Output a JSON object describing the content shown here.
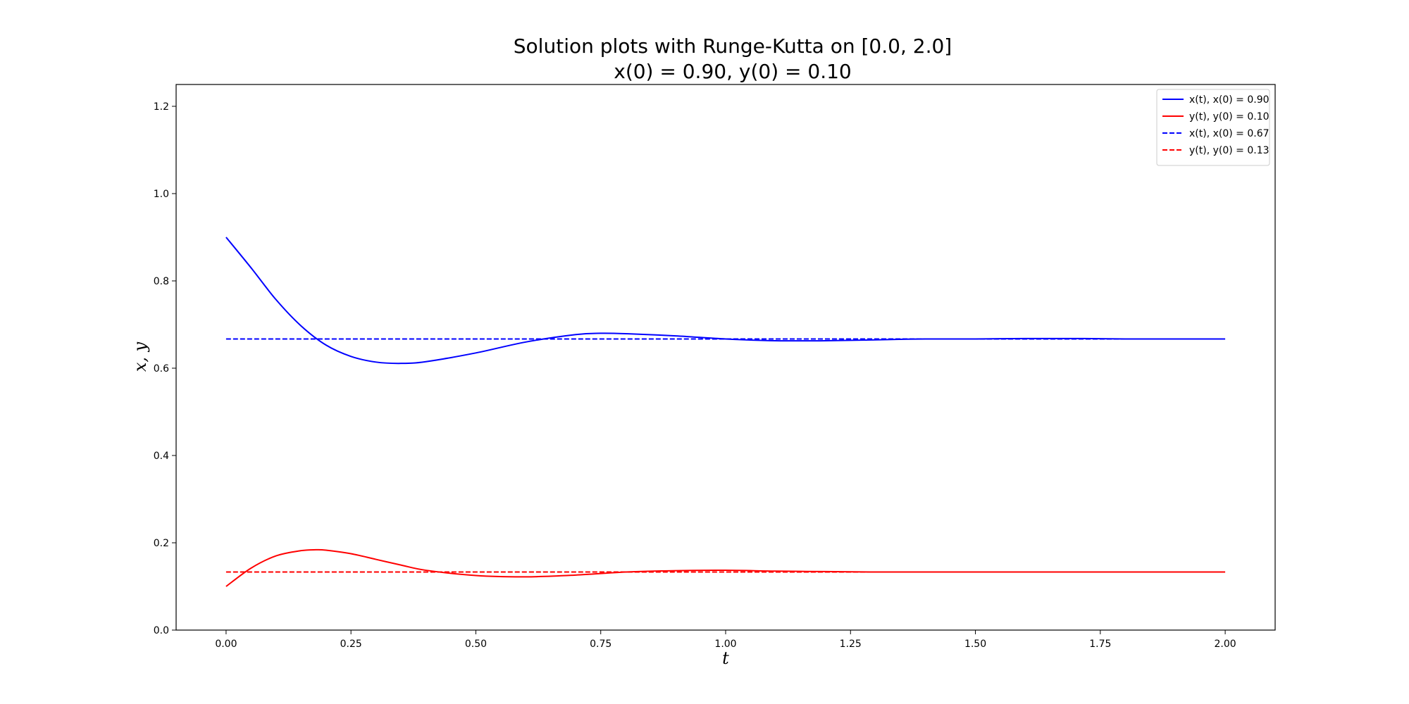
{
  "chart_data": {
    "type": "line",
    "title": "Solution plots with Runge-Kutta on [0.0, 2.0]",
    "subtitle": "x(0) = 0.90, y(0) = 0.10",
    "xlabel": "t",
    "ylabel": "x, y",
    "xlim": [
      -0.1,
      2.1
    ],
    "ylim": [
      0.0,
      1.25
    ],
    "xticks": [
      "0.00",
      "0.25",
      "0.50",
      "0.75",
      "1.00",
      "1.25",
      "1.50",
      "1.75",
      "2.00"
    ],
    "yticks": [
      "0.0",
      "0.2",
      "0.4",
      "0.6",
      "0.8",
      "1.0",
      "1.2"
    ],
    "grid": false,
    "legend_position": "top-right",
    "series": [
      {
        "name": "x(t), x(0) = 0.90",
        "color": "#0000ff",
        "style": "solid",
        "x": [
          0.0,
          0.05,
          0.1,
          0.15,
          0.2,
          0.25,
          0.3,
          0.35,
          0.4,
          0.5,
          0.6,
          0.7,
          0.75,
          0.8,
          0.9,
          1.0,
          1.1,
          1.2,
          1.3,
          1.4,
          1.5,
          1.6,
          1.7,
          1.8,
          1.9,
          2.0
        ],
        "y": [
          0.9,
          0.83,
          0.757,
          0.697,
          0.653,
          0.627,
          0.614,
          0.611,
          0.615,
          0.635,
          0.66,
          0.677,
          0.68,
          0.679,
          0.674,
          0.667,
          0.663,
          0.663,
          0.665,
          0.667,
          0.667,
          0.668,
          0.668,
          0.667,
          0.667,
          0.667
        ]
      },
      {
        "name": "y(t), y(0) = 0.10",
        "color": "#ff0000",
        "style": "solid",
        "x": [
          0.0,
          0.05,
          0.1,
          0.15,
          0.18,
          0.2,
          0.25,
          0.3,
          0.35,
          0.4,
          0.5,
          0.6,
          0.7,
          0.8,
          0.9,
          1.0,
          1.1,
          1.2,
          1.3,
          1.4,
          1.5,
          1.6,
          1.7,
          1.8,
          1.9,
          2.0
        ],
        "y": [
          0.1,
          0.142,
          0.17,
          0.182,
          0.184,
          0.183,
          0.175,
          0.162,
          0.149,
          0.137,
          0.125,
          0.122,
          0.126,
          0.133,
          0.136,
          0.137,
          0.135,
          0.134,
          0.133,
          0.133,
          0.133,
          0.133,
          0.133,
          0.133,
          0.133,
          0.133
        ]
      },
      {
        "name": "x(t), x(0) = 0.67",
        "color": "#0000ff",
        "style": "dashed",
        "x": [
          0.0,
          2.0
        ],
        "y": [
          0.667,
          0.667
        ]
      },
      {
        "name": "y(t), y(0) = 0.13",
        "color": "#ff0000",
        "style": "dashed",
        "x": [
          0.0,
          2.0
        ],
        "y": [
          0.133,
          0.133
        ]
      }
    ]
  }
}
